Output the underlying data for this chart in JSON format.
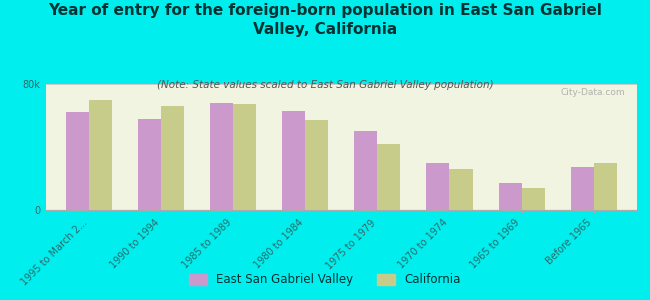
{
  "title": "Year of entry for the foreign-born population in East San Gabriel\nValley, California",
  "subtitle": "(Note: State values scaled to East San Gabriel Valley population)",
  "categories": [
    "1995 to March 2...",
    "1990 to 1994",
    "1985 to 1989",
    "1980 to 1984",
    "1975 to 1979",
    "1970 to 1974",
    "1965 to 1969",
    "Before 1965"
  ],
  "esgv_values": [
    62000,
    58000,
    68000,
    63000,
    50000,
    30000,
    17000,
    27000
  ],
  "ca_values": [
    70000,
    66000,
    67000,
    57000,
    42000,
    26000,
    14000,
    30000
  ],
  "esgv_color": "#cc99cc",
  "ca_color": "#c8cc8a",
  "background_color": "#00eeee",
  "plot_bg_color": "#f0f4e0",
  "ylim": [
    0,
    80000
  ],
  "ytick_labels": [
    "0",
    "80k"
  ],
  "legend_labels": [
    "East San Gabriel Valley",
    "California"
  ],
  "title_fontsize": 11,
  "subtitle_fontsize": 7.5,
  "tick_fontsize": 7,
  "legend_fontsize": 8.5,
  "title_color": "#003333",
  "tick_color": "#336666",
  "subtitle_color": "#555555",
  "watermark": "City-Data.com"
}
